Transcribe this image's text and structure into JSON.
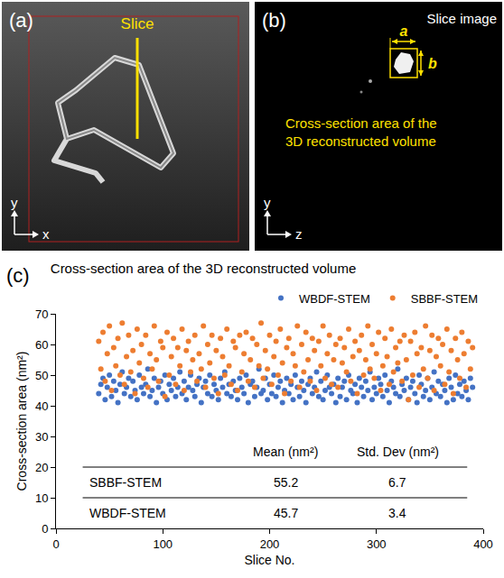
{
  "panel_a": {
    "label": "(a)",
    "slice": "Slice",
    "axis_y": "y",
    "axis_x": "x"
  },
  "panel_b": {
    "label": "(b)",
    "image_label": "Slice image",
    "width_label": "a",
    "height_label": "b",
    "caption": "Cross-section area of the 3D reconstructed volume",
    "axis_y": "y",
    "axis_x": "z"
  },
  "chart_data": {
    "panel_label": "(c)",
    "type": "scatter",
    "title": "Cross-section area of the 3D reconstructed volume",
    "x_label": "Slice No.",
    "y_label": "Cross-section area (nm²)",
    "legend": "top-right",
    "marker": "circle",
    "grid": false,
    "xlim": [
      0,
      400
    ],
    "xticks": [
      0,
      100,
      200,
      300,
      400
    ],
    "ylim": [
      0,
      70
    ],
    "yticks": [
      0,
      10,
      20,
      30,
      40,
      50,
      60,
      70
    ],
    "x": [
      40,
      42,
      44,
      46,
      48,
      50,
      52,
      54,
      56,
      58,
      60,
      62,
      64,
      66,
      68,
      70,
      72,
      74,
      76,
      78,
      80,
      82,
      84,
      86,
      88,
      90,
      92,
      94,
      96,
      98,
      100,
      102,
      104,
      106,
      108,
      110,
      112,
      114,
      116,
      118,
      120,
      122,
      124,
      126,
      128,
      130,
      132,
      134,
      136,
      138,
      140,
      142,
      144,
      146,
      148,
      150,
      152,
      154,
      156,
      158,
      160,
      162,
      164,
      166,
      168,
      170,
      172,
      174,
      176,
      178,
      180,
      182,
      184,
      186,
      188,
      190,
      192,
      194,
      196,
      198,
      200,
      202,
      204,
      206,
      208,
      210,
      212,
      214,
      216,
      218,
      220,
      222,
      224,
      226,
      228,
      230,
      232,
      234,
      236,
      238,
      240,
      242,
      244,
      246,
      248,
      250,
      252,
      254,
      256,
      258,
      260,
      262,
      264,
      266,
      268,
      270,
      272,
      274,
      276,
      278,
      280,
      282,
      284,
      286,
      288,
      290,
      292,
      294,
      296,
      298,
      300,
      302,
      304,
      306,
      308,
      310,
      312,
      314,
      316,
      318,
      320,
      322,
      324,
      326,
      328,
      330,
      332,
      334,
      336,
      338,
      340,
      342,
      344,
      346,
      348,
      350,
      352,
      354,
      356,
      358,
      360,
      362,
      364,
      366,
      368,
      370,
      372,
      374,
      376,
      378,
      380,
      382,
      384,
      386,
      388,
      390
    ],
    "series": [
      {
        "name": "WBDF-STEM",
        "color": "#4472c4",
        "values": [
          44,
          47,
          49,
          42,
          46,
          50,
          43,
          48,
          45,
          41,
          47,
          51,
          44,
          46,
          49,
          43,
          48,
          45,
          42,
          50,
          46,
          44,
          47,
          52,
          43,
          45,
          49,
          41,
          46,
          48,
          44,
          50,
          42,
          47,
          45,
          49,
          43,
          46,
          51,
          44,
          48,
          42,
          46,
          50,
          45,
          43,
          47,
          49,
          41,
          46,
          48,
          44,
          50,
          43,
          47,
          45,
          42,
          49,
          46,
          51,
          44,
          47,
          43,
          48,
          45,
          42,
          49,
          46,
          44,
          50,
          41,
          47,
          48,
          43,
          46,
          52,
          44,
          45,
          49,
          42,
          47,
          44,
          50,
          43,
          46,
          48,
          41,
          45,
          49,
          44,
          47,
          42,
          50,
          46,
          43,
          48,
          45,
          41,
          47,
          49,
          44,
          46,
          51,
          43,
          48,
          42,
          45,
          50,
          46,
          44,
          47,
          41,
          49,
          43,
          46,
          48,
          42,
          50,
          45,
          44,
          47,
          41,
          49,
          46,
          43,
          48,
          45,
          51,
          42,
          46,
          44,
          49,
          47,
          43,
          50,
          45,
          41,
          48,
          46,
          44,
          52,
          43,
          47,
          45,
          49,
          42,
          46,
          48,
          44,
          41,
          50,
          47,
          43,
          45,
          49,
          42,
          46,
          51,
          44,
          48,
          43,
          47,
          45,
          41,
          49,
          46,
          42,
          50,
          44,
          47,
          43,
          48,
          45,
          42,
          49,
          46
        ]
      },
      {
        "name": "SBBF-STEM",
        "color": "#ed7d31",
        "values": [
          61,
          52,
          64,
          48,
          57,
          66,
          45,
          59,
          53,
          62,
          50,
          67,
          47,
          56,
          63,
          51,
          58,
          44,
          65,
          54,
          60,
          49,
          63,
          46,
          57,
          52,
          66,
          55,
          48,
          61,
          59,
          43,
          64,
          50,
          56,
          62,
          47,
          59,
          53,
          65,
          45,
          58,
          61,
          51,
          55,
          63,
          48,
          57,
          52,
          66,
          46,
          60,
          54,
          63,
          49,
          58,
          44,
          62,
          56,
          50,
          65,
          53,
          47,
          61,
          59,
          45,
          63,
          51,
          57,
          64,
          48,
          55,
          62,
          46,
          60,
          53,
          67,
          49,
          58,
          52,
          63,
          47,
          56,
          61,
          50,
          65,
          54,
          44,
          59,
          62,
          48,
          57,
          53,
          66,
          46,
          60,
          51,
          64,
          55,
          48,
          62,
          58,
          45,
          61,
          53,
          66,
          49,
          57,
          63,
          47,
          55,
          60,
          46,
          62,
          54,
          59,
          51,
          65,
          48,
          56,
          61,
          44,
          58,
          63,
          50,
          55,
          66,
          52,
          60,
          49,
          57,
          64,
          45,
          53,
          62,
          56,
          47,
          65,
          51,
          59,
          54,
          61,
          48,
          63,
          55,
          42,
          61,
          50,
          64,
          57,
          46,
          59,
          52,
          66,
          49,
          58,
          63,
          45,
          56,
          62,
          53,
          60,
          47,
          65,
          51,
          58,
          44,
          62,
          55,
          49,
          64,
          57,
          46,
          61,
          52,
          59
        ]
      }
    ],
    "table": {
      "columns": [
        "Mean (nm²)",
        "Std. Dev (nm²)"
      ],
      "rows": [
        [
          "SBBF-STEM",
          55.2,
          6.7
        ],
        [
          "WBDF-STEM",
          45.7,
          3.4
        ]
      ]
    }
  }
}
